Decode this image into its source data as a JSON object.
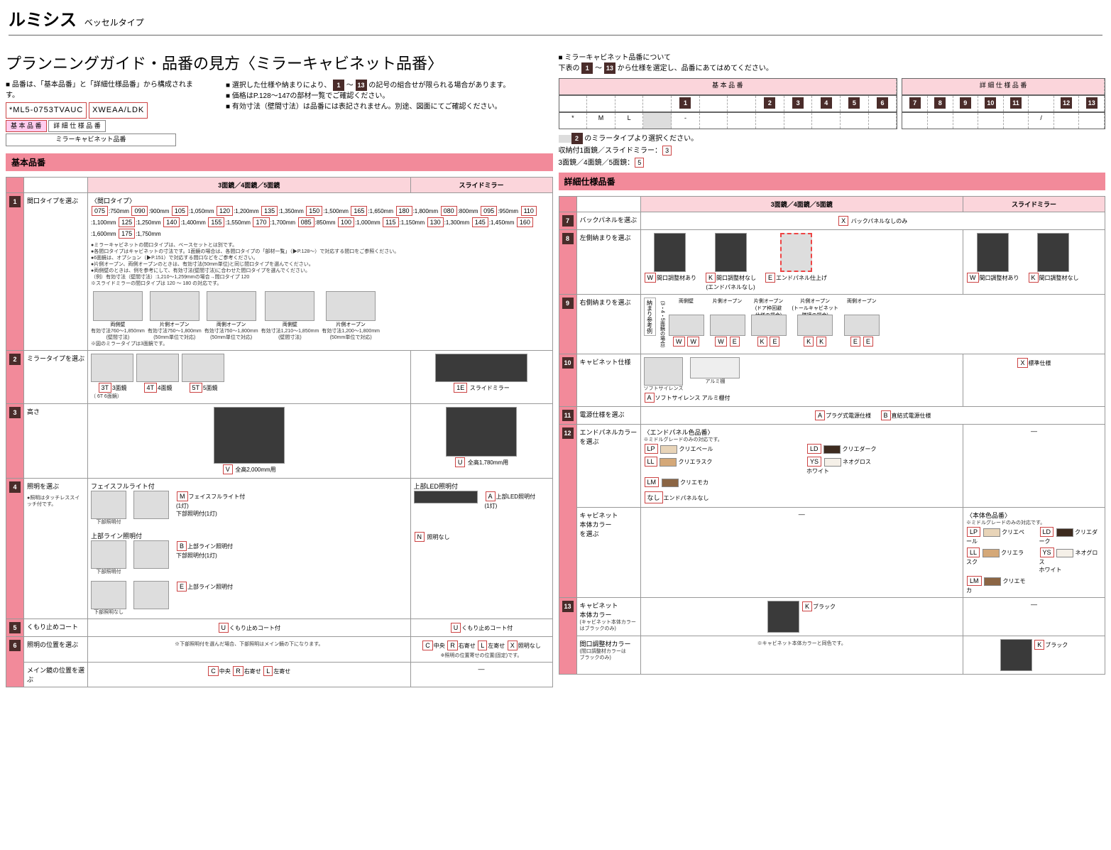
{
  "header": {
    "title": "ルミシス",
    "subtitle": "ベッセルタイプ"
  },
  "planning": {
    "title": "プランニングガイド・品番の見方〈ミラーキャビネット品番〉",
    "intro1": "■ 品番は、「基本品番」と「詳細仕様品番」から構成されます。",
    "code1": "*ML5-0753TVAUC",
    "code2": "XWEAA/LDK",
    "box1": "基 本 品 番",
    "box2": "詳 細 仕 様 品 番",
    "box3": "ミラーキャビネット品番",
    "intro2a": "■ 選択した仕様や納まりにより、",
    "intro2b": "の記号の組合せが限られる場合があります。",
    "intro3": "■ 価格はP.128～147の部材一覧でご確認ください。",
    "intro4": "■ 有効寸法（壁間寸法）は品番には表記されません。別途、図面にてご確認ください。",
    "range1": "1",
    "range2": "13"
  },
  "right_intro": {
    "t1": "■ ミラーキャビネット品番について",
    "t2": "下表の",
    "t3": "から仕様を選定し、品番にあてはめてください。",
    "basic": "基 本 品 番",
    "detail": "詳 細 仕 様 品 番",
    "note1": "のミラータイプより選択ください。",
    "note2": "収納付1面鏡／スライドミラー：",
    "note2v": "3",
    "note3": "3面鏡／4面鏡／5面鏡：",
    "note3v": "5"
  },
  "basic": {
    "title": "基本品番",
    "col1": "3面鏡／4面鏡／5面鏡",
    "col2": "スライドミラー",
    "r1": {
      "label": "間口タイプを選ぶ",
      "sub": "〈間口タイプ〉",
      "opts": [
        [
          "075",
          ":750mm"
        ],
        [
          "090",
          ":900mm"
        ],
        [
          "105",
          ":1,050mm"
        ],
        [
          "120",
          ":1,200mm"
        ],
        [
          "135",
          ":1,350mm"
        ],
        [
          "150",
          ":1,500mm"
        ],
        [
          "165",
          ":1,650mm"
        ],
        [
          "180",
          ":1,800mm"
        ],
        [
          "080",
          ":800mm"
        ],
        [
          "095",
          ":950mm"
        ],
        [
          "110",
          ":1,100mm"
        ],
        [
          "125",
          ":1,250mm"
        ],
        [
          "140",
          ":1,400mm"
        ],
        [
          "155",
          ":1,550mm"
        ],
        [
          "170",
          ":1,700mm"
        ],
        [
          "085",
          ":850mm"
        ],
        [
          "100",
          ":1,000mm"
        ],
        [
          "115",
          ":1,150mm"
        ],
        [
          "130",
          ":1,300mm"
        ],
        [
          "145",
          ":1,450mm"
        ],
        [
          "160",
          ":1,600mm"
        ],
        [
          "175",
          ":1,750mm"
        ]
      ],
      "notes": "●ミラーキャビネットの間口タイプは、ベースセットとは別です。\n●各間口タイプはキャビネットの寸法です。1面鏡の場合は、各間口タイプの「部材一覧」（▶P.128～）で対応する間口をご参照ください。\n●6面鏡は、オプション（▶P.151）で対応する間口などをご参考ください。\n●片側オープン、両側オープンのときは、有効寸法(50mm単位)と同じ間口タイプを選んでください。\n●両側壁のときは、例を参考にして、有効寸法(壁間寸法)に合わせた間口タイプを選んでください。\n（例）有効寸法（壁間寸法）:1,210～1,259mmの場合→間口タイプ 120\n※スライドミラーの間口タイプは 120 ～ 180 の対応です。",
      "variants": [
        "両側壁",
        "片側オープン",
        "両側オープン",
        "両側壁",
        "片側オープン"
      ],
      "vnote1": "有効寸法760～1,850mm\n(壁間寸法)",
      "vnote2": "有効寸法750～1,800mm\n(50mm単位で対応)",
      "vnote3": "有効寸法750～1,800mm\n(50mm単位で対応)",
      "vnote4": "有効寸法1,210～1,850mm\n(壁間寸法)",
      "vnote5": "有効寸法1,200～1,800mm\n(50mm単位で対応)",
      "foot": "※図のミラータイプは3面鏡です。"
    },
    "r2": {
      "label": "ミラータイプを選ぶ",
      "opts": [
        [
          "3T",
          "3面鏡"
        ],
        [
          "4T",
          "4面鏡"
        ],
        [
          "5T",
          "5面鏡"
        ]
      ],
      "alt": "（ 6T 6面鏡）",
      "slide": [
        "1E",
        "スライドミラー"
      ]
    },
    "r3": {
      "label": "高さ",
      "v": [
        "V",
        "全高2,000mm用"
      ],
      "u": [
        "U",
        "全高1,780mm用"
      ]
    },
    "r4": {
      "label": "照明を選ぶ",
      "sub": "●照明はタッチレススイッチ付です。",
      "g1": "フェイスフルライト付",
      "g1o": [
        "M",
        "フェイスフルライト付\n(1灯)\n下部照明付(1灯)"
      ],
      "g1s": "下部照明付",
      "g2": "上部ライン照明付",
      "g2o": [
        "B",
        "上部ライン照明付\n下部照明付(1灯)"
      ],
      "g2s": "下部照明付",
      "g3o": [
        "E",
        "上部ライン照明付"
      ],
      "g3s": "下部照明なし",
      "led": "上部LED照明付",
      "ledo": [
        "A",
        "上部LED照明付\n(1灯)"
      ],
      "n": [
        "N",
        "照明なし"
      ]
    },
    "r5": {
      "label": "くもり止めコート",
      "o": [
        "U",
        "くもり止めコート付"
      ]
    },
    "r6": {
      "label1": "照明の位置を選ぶ",
      "note1": "※下部照明付を選んだ場合、下部照明はメイン鏡の下になります。",
      "opts": [
        [
          "C",
          "中央"
        ],
        [
          "R",
          "右寄せ"
        ],
        [
          "L",
          "左寄せ"
        ],
        [
          "X",
          "照明なし"
        ]
      ],
      "note2": "※照明の位置寄せの位置(固定)です。",
      "label2": "メイン鏡の位置を選ぶ",
      "opts2": [
        [
          "C",
          "中央"
        ],
        [
          "R",
          "右寄せ"
        ],
        [
          "L",
          "左寄せ"
        ]
      ]
    }
  },
  "detail": {
    "title": "詳細仕様品番",
    "col1": "3面鏡／4面鏡／5面鏡",
    "col2": "スライドミラー",
    "r7": {
      "label": "バックパネルを選ぶ",
      "o": [
        "X",
        "バックパネルなしのみ"
      ]
    },
    "r8": {
      "label": "左側納まりを選ぶ",
      "a": [
        [
          "W",
          "間口調整材あり"
        ],
        [
          "K",
          "間口調整材なし\n(エンドパネルなし)"
        ],
        [
          "E",
          "エンドパネル仕上げ"
        ]
      ],
      "b": [
        [
          "W",
          "間口調整材あり"
        ],
        [
          "K",
          "間口調整材なし"
        ]
      ]
    },
    "r9": {
      "label": "右側納まりを選ぶ",
      "side": "納まり参考例",
      "sub": "（3・4・5面鏡の場合）",
      "v": [
        [
          "両側壁",
          "W",
          "W"
        ],
        [
          "片側オープン",
          "W",
          "E"
        ],
        [
          "片側オープン\n(ドア枠回避\n仕様の場合)",
          "K",
          "E"
        ],
        [
          "片側オープン\n(トールキャビネット\n隣接の場合)",
          "K",
          "K"
        ],
        [
          "両側オープン",
          "E",
          "E"
        ]
      ],
      "door": "ドア枠"
    },
    "r10": {
      "label": "キャビネット仕様",
      "a": [
        "A",
        "ソフトサイレンス アルミ棚付"
      ],
      "s1": "ソフトサイレンス",
      "s2": "アルミ棚",
      "x": [
        "X",
        "標準仕様"
      ]
    },
    "r11": {
      "label": "電源仕様を選ぶ",
      "a": [
        "A",
        "プラグ式電源仕様"
      ],
      "b": [
        "B",
        "直結式電源仕様"
      ]
    },
    "r12a": {
      "label": "エンドパネルカラー\nを選ぶ",
      "hdr": "〈エンドパネル色品番〉",
      "note": "※ミドルグレードのみの対応です。",
      "opts": [
        [
          "LP",
          "#e8d4b8",
          "クリエペール"
        ],
        [
          "LD",
          "#3d2b1f",
          "クリエダーク"
        ],
        [
          "LL",
          "#d4a878",
          "クリエラスク"
        ],
        [
          "YS",
          "#f5f0e8",
          "ネオグロス\nホワイト"
        ],
        [
          "LM",
          "#8b6544",
          "クリエモカ"
        ]
      ],
      "none": [
        "なし",
        "エンドパネルなし"
      ]
    },
    "r12b": {
      "label": "キャビネット\n本体カラー\nを選ぶ",
      "hdr": "〈本体色品番〉",
      "note": "※ミドルグレードのみの対応です。",
      "opts": [
        [
          "LP",
          "#e8d4b8",
          "クリエペール"
        ],
        [
          "LD",
          "#3d2b1f",
          "クリエダーク"
        ],
        [
          "LL",
          "#d4a878",
          "クリエラスク"
        ],
        [
          "YS",
          "#f5f0e8",
          "ネオグロス\nホワイト"
        ],
        [
          "LM",
          "#8b6544",
          "クリエモカ"
        ]
      ]
    },
    "r13a": {
      "label": "キャビネット\n本体カラー",
      "sub": "(キャビネット本体カラー\nはブラックのみ)",
      "o": [
        "K",
        "ブラック"
      ]
    },
    "r13b": {
      "label": "間口調整材カラー",
      "sub": "(間口調整材カラーは\nブラックのみ)",
      "note": "※キャビネット本体カラーと同色です。",
      "o": [
        "K",
        "ブラック"
      ]
    }
  }
}
